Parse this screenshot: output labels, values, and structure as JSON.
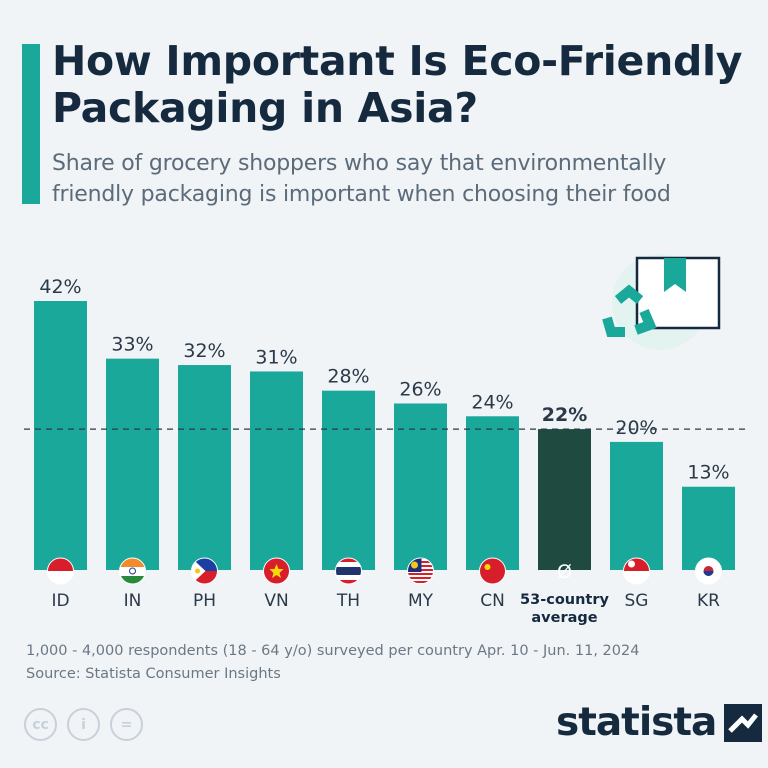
{
  "header": {
    "title": "How Important Is Eco-Friendly Packaging in Asia?",
    "subtitle": "Share of grocery shoppers who say that environmentally friendly packaging is important when choosing their food"
  },
  "chart_data": {
    "type": "bar",
    "categories": [
      "ID",
      "IN",
      "PH",
      "VN",
      "TH",
      "MY",
      "CN",
      "53-country average",
      "SG",
      "KR"
    ],
    "values": [
      42,
      33,
      32,
      31,
      28,
      26,
      24,
      22,
      20,
      13
    ],
    "value_labels": [
      "42%",
      "33%",
      "32%",
      "31%",
      "28%",
      "26%",
      "24%",
      "22%",
      "20%",
      "13%"
    ],
    "reference_line": {
      "value": 22,
      "style": "dashed"
    },
    "average_symbol": "Ø",
    "ylim": [
      0,
      42
    ],
    "colors": {
      "bar": "#1aa89a",
      "average_bar": "#1e4a40",
      "label": "#2b3a48"
    }
  },
  "footer": {
    "note": "1,000 - 4,000 respondents (18 - 64 y/o) surveyed per country Apr. 10 - Jun. 11, 2024",
    "source": "Source: Statista Consumer Insights",
    "brand": "statista",
    "license_icons": [
      "cc",
      "i",
      "="
    ]
  }
}
